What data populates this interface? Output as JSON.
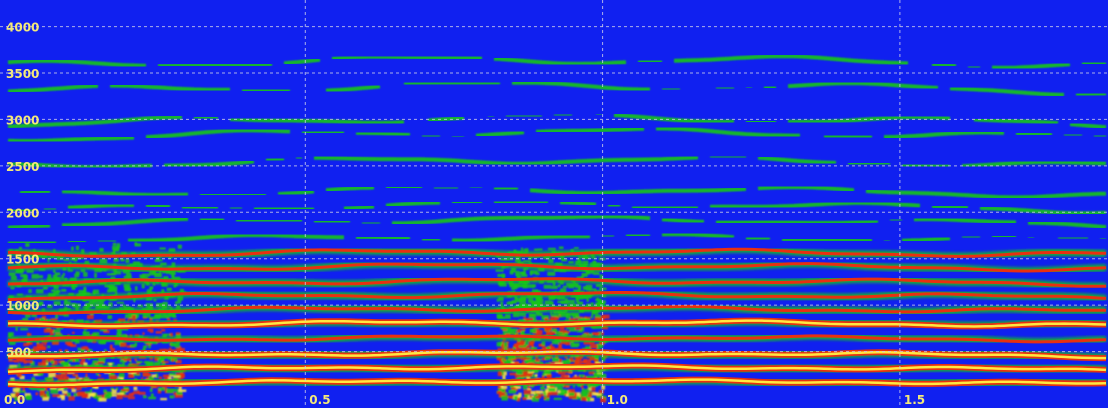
{
  "chart_data": {
    "type": "heatmap",
    "subtype": "spectrogram",
    "title": "",
    "xlabel": "",
    "ylabel": "",
    "xlim": [
      0,
      1.85
    ],
    "ylim": [
      0,
      4200
    ],
    "x_ticks": [
      {
        "value": 0.0,
        "label": "0.0"
      },
      {
        "value": 0.5,
        "label": "0.5"
      },
      {
        "value": 1.0,
        "label": "1.0"
      },
      {
        "value": 1.5,
        "label": "1.5"
      }
    ],
    "y_ticks": [
      {
        "value": 500,
        "label": "500"
      },
      {
        "value": 1000,
        "label": "1000"
      },
      {
        "value": 1500,
        "label": "1500"
      },
      {
        "value": 2000,
        "label": "2000"
      },
      {
        "value": 2500,
        "label": "2500"
      },
      {
        "value": 3000,
        "label": "3000"
      },
      {
        "value": 3500,
        "label": "3500"
      },
      {
        "value": 4000,
        "label": "4000"
      }
    ],
    "grid": true,
    "colormap": [
      "#1020f0",
      "#18c818",
      "#e83010",
      "#ffe840"
    ],
    "harmonics": [
      {
        "freq": 150,
        "level": "high"
      },
      {
        "freq": 300,
        "level": "high"
      },
      {
        "freq": 450,
        "level": "high"
      },
      {
        "freq": 620,
        "level": "medium"
      },
      {
        "freq": 780,
        "level": "high"
      },
      {
        "freq": 930,
        "level": "medium"
      },
      {
        "freq": 1080,
        "level": "medium"
      },
      {
        "freq": 1230,
        "level": "medium"
      },
      {
        "freq": 1390,
        "level": "medium"
      },
      {
        "freq": 1540,
        "level": "medium"
      },
      {
        "freq": 1700,
        "level": "low"
      },
      {
        "freq": 1860,
        "level": "low"
      },
      {
        "freq": 2020,
        "level": "low"
      },
      {
        "freq": 2180,
        "level": "low"
      },
      {
        "freq": 2500,
        "level": "low"
      },
      {
        "freq": 2800,
        "level": "low"
      },
      {
        "freq": 2950,
        "level": "low"
      },
      {
        "freq": 3300,
        "level": "low"
      },
      {
        "freq": 3580,
        "level": "low"
      }
    ],
    "noise_segments": [
      {
        "x_start": 0.0,
        "x_end": 0.29,
        "freq_max": 1700
      },
      {
        "x_start": 0.82,
        "x_end": 1.0,
        "freq_max": 1650
      }
    ]
  }
}
